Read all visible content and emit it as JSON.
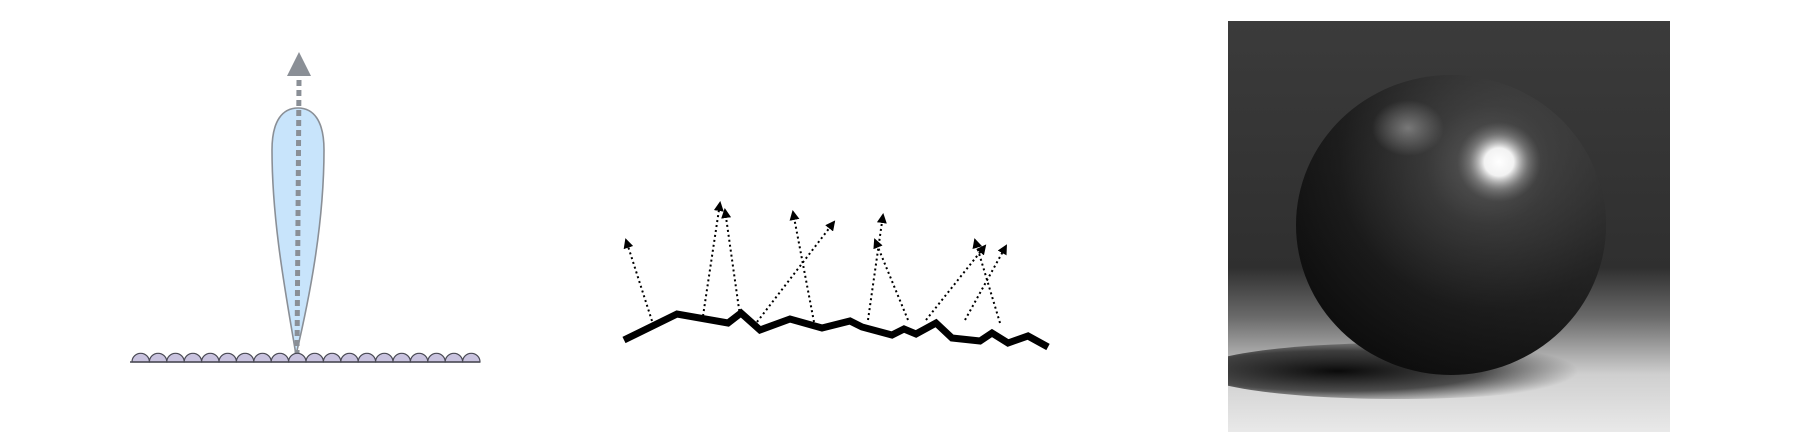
{
  "panels": [
    {
      "id": "specular-lobe",
      "description_visible_text": "",
      "colors": {
        "lobe_fill": "#c8e4fb",
        "lobe_stroke": "#8a8f96",
        "arrow": "#8a8f96",
        "bumps_fill": "#c9c3df",
        "bumps_stroke": "#4a4a55"
      },
      "icons": [
        "up-arrow-icon"
      ]
    },
    {
      "id": "rough-surface-scatter",
      "description_visible_text": "",
      "colors": {
        "surface": "#000000",
        "rays": "#000000"
      },
      "ray_count": 11
    },
    {
      "id": "rendered-sphere",
      "description_visible_text": "",
      "colors": {
        "background_top": "#3a3a3a",
        "floor_light": "#e8e8e8",
        "sphere_dark": "#0f0f0f",
        "highlight": "#ffffff"
      }
    }
  ]
}
